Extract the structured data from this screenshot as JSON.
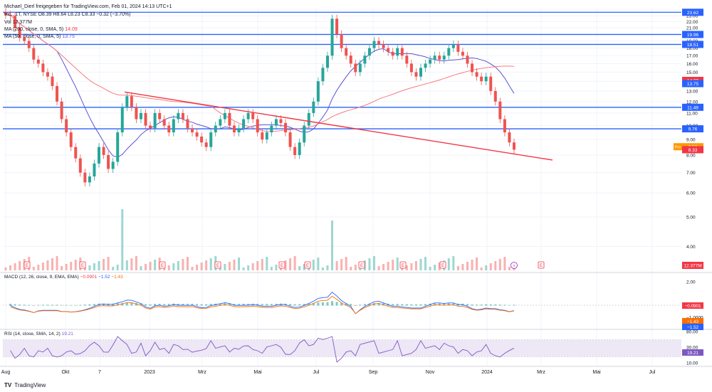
{
  "header": {
    "attribution": "Michael_Dierl freigegeben für TradingView.com, Feb 01, 2024 14:13 UTC+1",
    "symbol_line": "Inc., 1T, NYSE  O8.39  H8.64  L8.23  C8.33  −0.32 (−3.70%)",
    "vol_line": "Vol  12.377M",
    "ma1_line": "MA (200, close, 0, SMA, 5)",
    "ma1_value": "14.09",
    "ma2_line": "MA (50, close, 0, SMA, 5)",
    "ma2_value": "13.75"
  },
  "footer": {
    "brand": "TradingView"
  },
  "colors": {
    "up": "#26a69a",
    "down": "#ef5350",
    "hline": "#2962ff",
    "trendline": "#f23645",
    "ma200": "#f77c80",
    "ma50": "#5b52d6",
    "macd": "#2962ff",
    "signal": "#ff6d00",
    "rsi": "#7e57c2",
    "rsi_band": "#ede7f6"
  },
  "chart_data": {
    "type": "candlestick",
    "x_ticks": [
      "Aug",
      "Okt",
      "7",
      "2023",
      "Mrz",
      "Mai",
      "Jul",
      "Sep",
      "Nov",
      "2024",
      "Mrz",
      "Mai",
      "Jul"
    ],
    "y_ticks": [
      "24.00",
      "23.00",
      "22.00",
      "21.00",
      "20.00",
      "19.00",
      "18.00",
      "17.00",
      "16.00",
      "15.00",
      "14.00",
      "13.00",
      "12.00",
      "11.00",
      "10.00",
      "9.00",
      "8.00",
      "7.00",
      "6.00",
      "5.00",
      "4.00"
    ],
    "horizontal_levels": [
      {
        "value": 23.62,
        "label": "23.62"
      },
      {
        "value": 19.96,
        "label": "19.96"
      },
      {
        "value": 18.51,
        "label": "18.51"
      },
      {
        "value": 11.49,
        "label": "11.49"
      },
      {
        "value": 9.76,
        "label": "9.76"
      }
    ],
    "price_badges": [
      {
        "label": "14.09",
        "value": 14.09,
        "color": "#f23645"
      },
      {
        "label": "13.75",
        "value": 13.75,
        "color": "#2962ff"
      },
      {
        "label": "8.52",
        "value": 8.52,
        "color": "#ff9800",
        "tag": "Pre"
      },
      {
        "label": "8.33",
        "value": 8.33,
        "color": "#f23645"
      },
      {
        "label": "12.377M",
        "value": null,
        "color": "#f23645"
      }
    ],
    "trendline": {
      "start": {
        "x": "2022-11",
        "y": 12.9
      },
      "end": {
        "x": "2024-03",
        "y": 7.7
      }
    },
    "close_series": [
      23.2,
      23.0,
      21.0,
      19.5,
      19.0,
      18.0,
      16.5,
      16.0,
      15.0,
      14.5,
      13.5,
      12.0,
      10.5,
      9.5,
      8.5,
      7.8,
      7.0,
      6.5,
      6.8,
      7.5,
      8.5,
      8.0,
      7.2,
      7.6,
      9.5,
      11.5,
      12.5,
      11.5,
      10.5,
      11.0,
      10.0,
      9.8,
      11.0,
      10.5,
      10.0,
      9.5,
      10.5,
      11.0,
      10.5,
      9.8,
      9.5,
      9.2,
      8.8,
      8.5,
      9.5,
      10.0,
      10.5,
      11.0,
      10.0,
      9.5,
      9.8,
      10.5,
      11.0,
      10.5,
      9.5,
      9.0,
      9.5,
      10.0,
      10.5,
      10.2,
      9.5,
      8.5,
      8.0,
      8.8,
      10.0,
      11.0,
      12.0,
      14.0,
      15.5,
      17.0,
      22.5,
      20.0,
      18.0,
      17.0,
      16.0,
      15.0,
      16.0,
      17.0,
      18.0,
      19.0,
      18.5,
      18.0,
      17.5,
      17.0,
      18.0,
      17.0,
      16.0,
      15.0,
      14.5,
      15.5,
      16.0,
      16.5,
      17.0,
      16.5,
      17.0,
      18.0,
      18.5,
      17.5,
      17.0,
      16.0,
      15.0,
      14.5,
      14.0,
      14.5,
      13.0,
      12.0,
      10.5,
      9.5,
      8.8,
      8.33
    ],
    "volume_badge": "12.377M",
    "earnings_markers": [
      "E",
      "E",
      "E",
      "E",
      "E",
      "E",
      "E",
      "E",
      "E",
      "E"
    ],
    "lightning_marker": "⚡",
    "macd": {
      "label": "MACD (12, 26, close, 9, EMA, EMA)",
      "values": [
        "−0.0901",
        "−1.52",
        "−1.43"
      ],
      "y_ticks": [
        "2.00",
        "0.00",
        "−1.0000"
      ],
      "badges": [
        "−0.0901",
        "−1.43",
        "−1.52"
      ]
    },
    "rsi": {
      "label": "RSI (14, close, SMA, 14, 2)",
      "value": "19.21",
      "y_ticks": [
        "80.00",
        "30.00",
        "10.00"
      ],
      "badges": [
        "19.21"
      ]
    }
  }
}
